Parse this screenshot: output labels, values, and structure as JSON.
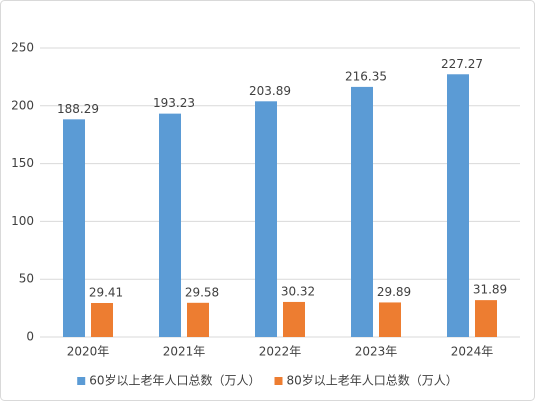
{
  "chart_data": {
    "type": "bar",
    "categories": [
      "2020年",
      "2021年",
      "2022年",
      "2023年",
      "2024年"
    ],
    "series": [
      {
        "name": "60岁以上老年人口总数（万人）",
        "color": "#5b9bd5",
        "values": [
          188.29,
          193.23,
          203.89,
          216.35,
          227.27
        ]
      },
      {
        "name": "80岁以上老年人口总数（万人）",
        "color": "#ed7d31",
        "values": [
          29.41,
          29.58,
          30.32,
          29.89,
          31.89
        ]
      }
    ],
    "ylim": [
      0,
      250
    ],
    "yticks": [
      0,
      50,
      100,
      150,
      200,
      250
    ],
    "grid": true,
    "legend": "bottom"
  }
}
